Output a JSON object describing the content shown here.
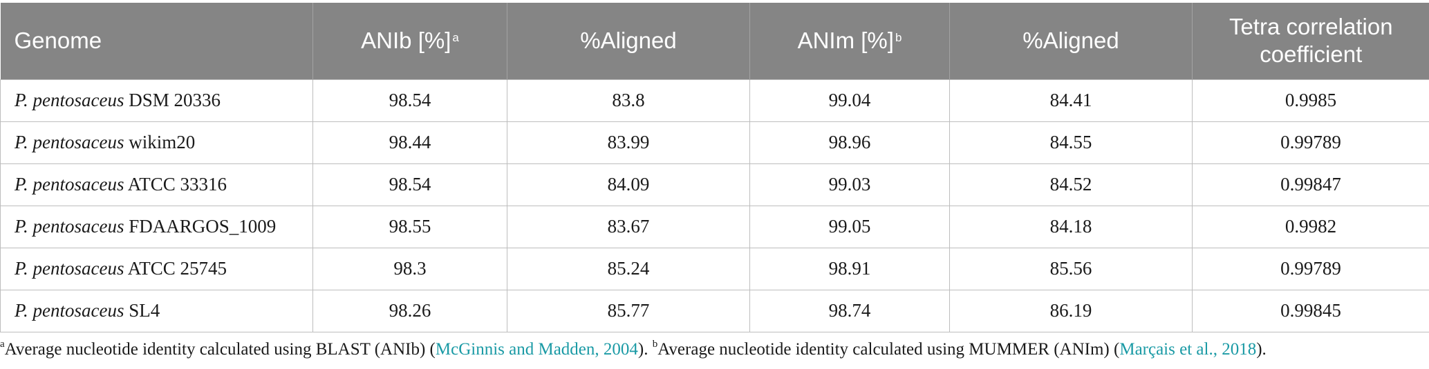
{
  "table": {
    "headers": {
      "genome": "Genome",
      "anib": "ANIb [%]",
      "anib_mark": "a",
      "aligned1": "%Aligned",
      "anim": "ANIm [%]",
      "anim_mark": "b",
      "aligned2": "%Aligned",
      "tetra_line1": "Tetra correlation",
      "tetra_line2": "coefficient"
    },
    "rows": [
      {
        "species": "P. pentosaceus",
        "strain": "DSM 20336",
        "anib": "98.54",
        "aligned1": "83.8",
        "anim": "99.04",
        "aligned2": "84.41",
        "tetra": "0.9985"
      },
      {
        "species": "P. pentosaceus",
        "strain": "wikim20",
        "anib": "98.44",
        "aligned1": "83.99",
        "anim": "98.96",
        "aligned2": "84.55",
        "tetra": "0.99789"
      },
      {
        "species": "P. pentosaceus",
        "strain": "ATCC 33316",
        "anib": "98.54",
        "aligned1": "84.09",
        "anim": "99.03",
        "aligned2": "84.52",
        "tetra": "0.99847"
      },
      {
        "species": "P. pentosaceus",
        "strain": "FDAARGOS_1009",
        "anib": "98.55",
        "aligned1": "83.67",
        "anim": "99.05",
        "aligned2": "84.18",
        "tetra": "0.9982"
      },
      {
        "species": "P. pentosaceus",
        "strain": "ATCC 25745",
        "anib": "98.3",
        "aligned1": "85.24",
        "anim": "98.91",
        "aligned2": "85.56",
        "tetra": "0.99789"
      },
      {
        "species": "P. pentosaceus",
        "strain": "SL4",
        "anib": "98.26",
        "aligned1": "85.77",
        "anim": "98.74",
        "aligned2": "86.19",
        "tetra": "0.99845"
      }
    ]
  },
  "footnote": {
    "mark_a": "a",
    "text_a": "Average nucleotide identity calculated using BLAST (ANIb) (",
    "cite_a": "McGinnis and Madden, 2004",
    "end_a": "). ",
    "mark_b": "b",
    "text_b": "Average nucleotide identity calculated using MUMMER (ANIm) (",
    "cite_b": "Marçais et al., 2018",
    "end_b": ")."
  },
  "colors": {
    "header_bg": "#858585",
    "header_text": "#ffffff",
    "citation_link": "#1a9aa5",
    "grid": "#bdbdbd"
  }
}
